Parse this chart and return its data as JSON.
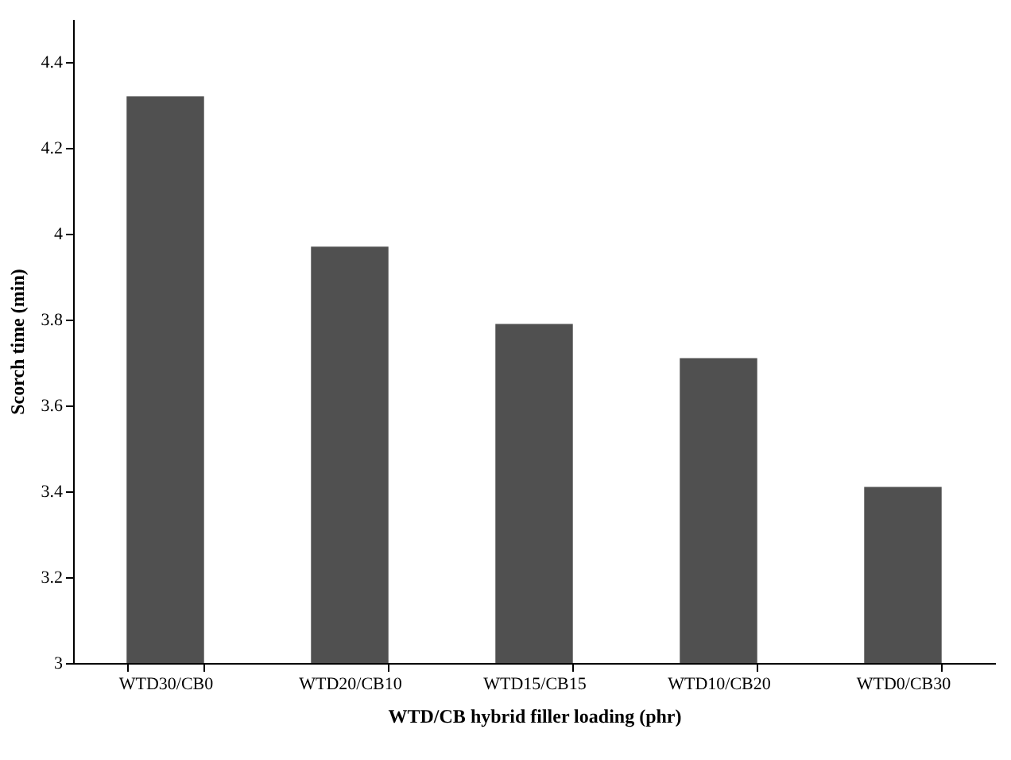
{
  "chart_data": {
    "type": "bar",
    "xlabel": "WTD/CB hybrid filler loading (phr)",
    "ylabel": "Scorch time (min)",
    "categories": [
      "WTD30/CB0",
      "WTD20/CB10",
      "WTD15/CB15",
      "WTD10/CB20",
      "WTD0/CB30"
    ],
    "values": [
      4.32,
      3.97,
      3.79,
      3.71,
      3.41
    ],
    "color": "#505050",
    "ylim": [
      3,
      4.5
    ],
    "yticks": [
      3,
      3.2,
      3.4,
      3.6,
      3.8,
      4,
      4.2,
      4.4
    ],
    "grid": false
  }
}
